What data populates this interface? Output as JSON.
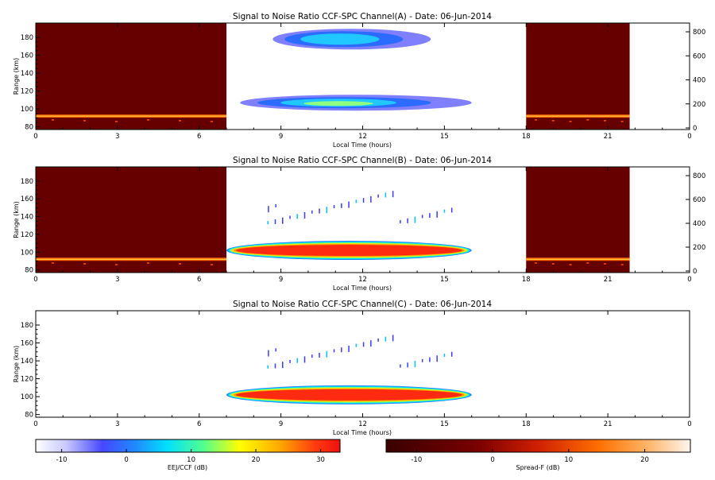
{
  "chart_data": [
    {
      "type": "heatmap",
      "panel": "A",
      "title": "Signal to Noise Ratio CCF-SPC Channel(A) - Date: 06-Jun-2014",
      "xlabel": "Local Time (hours)",
      "ylabel": "Range (km)",
      "xlim": [
        0,
        24
      ],
      "ylim": [
        77,
        196
      ],
      "x_ticks": [
        "0",
        "3",
        "6",
        "9",
        "12",
        "15",
        "18",
        "21",
        "0"
      ],
      "y_ticks": [
        "80",
        "100",
        "120",
        "140",
        "160",
        "180"
      ],
      "right_ticks": [
        "0",
        "200",
        "400",
        "600",
        "800"
      ],
      "spread_f_blocks": [
        [
          0,
          7
        ],
        [
          18,
          21.8
        ]
      ],
      "spread_f_layer_range_km": 92,
      "eej_echoes": [
        {
          "t0": 7.5,
          "t1": 16.0,
          "range_km": 107,
          "peak_db": 12
        },
        {
          "t0": 8.7,
          "t1": 14.5,
          "range_km": 178,
          "peak_db": 5
        }
      ]
    },
    {
      "type": "heatmap",
      "panel": "B",
      "title": "Signal to Noise Ratio CCF-SPC Channel(B) - Date: 06-Jun-2014",
      "xlabel": "Local Time (hours)",
      "ylabel": "Range (km)",
      "xlim": [
        0,
        24
      ],
      "ylim": [
        77,
        196
      ],
      "x_ticks": [
        "0",
        "3",
        "6",
        "9",
        "12",
        "15",
        "18",
        "21",
        "0"
      ],
      "y_ticks": [
        "80",
        "100",
        "120",
        "140",
        "160",
        "180"
      ],
      "right_ticks": [
        "0",
        "200",
        "400",
        "600",
        "800"
      ],
      "spread_f_blocks": [
        [
          0,
          7
        ],
        [
          18,
          21.8
        ]
      ],
      "spread_f_layer_range_km": 92,
      "eej_echoes": [
        {
          "t0": 7.0,
          "t1": 16.0,
          "range_km": 102,
          "peak_db": 30
        }
      ]
    },
    {
      "type": "heatmap",
      "panel": "C",
      "title": "Signal to Noise Ratio CCF-SPC Channel(C) - Date: 06-Jun-2014",
      "xlabel": "Local Time (hours)",
      "ylabel": "Range (km)",
      "xlim": [
        0,
        24
      ],
      "ylim": [
        77,
        196
      ],
      "x_ticks": [
        "0",
        "3",
        "6",
        "9",
        "12",
        "15",
        "18",
        "21",
        "0"
      ],
      "y_ticks": [
        "80",
        "100",
        "120",
        "140",
        "160",
        "180"
      ],
      "spread_f_blocks": [],
      "eej_echoes": [
        {
          "t0": 7.0,
          "t1": 16.0,
          "range_km": 102,
          "peak_db": 30
        }
      ]
    }
  ],
  "colorbars": [
    {
      "label": "EEJ/CCF (dB)",
      "ticks": [
        "-10",
        "0",
        "10",
        "20",
        "30"
      ],
      "range": [
        -14,
        33
      ]
    },
    {
      "label": "Spread-F (dB)",
      "ticks": [
        "-10",
        "0",
        "10",
        "20"
      ],
      "range": [
        -14,
        26
      ]
    }
  ],
  "colors": {
    "spread_f_background": "#660000",
    "eej_core": "#ff2a10",
    "eej_weak": "#3a3aff"
  }
}
